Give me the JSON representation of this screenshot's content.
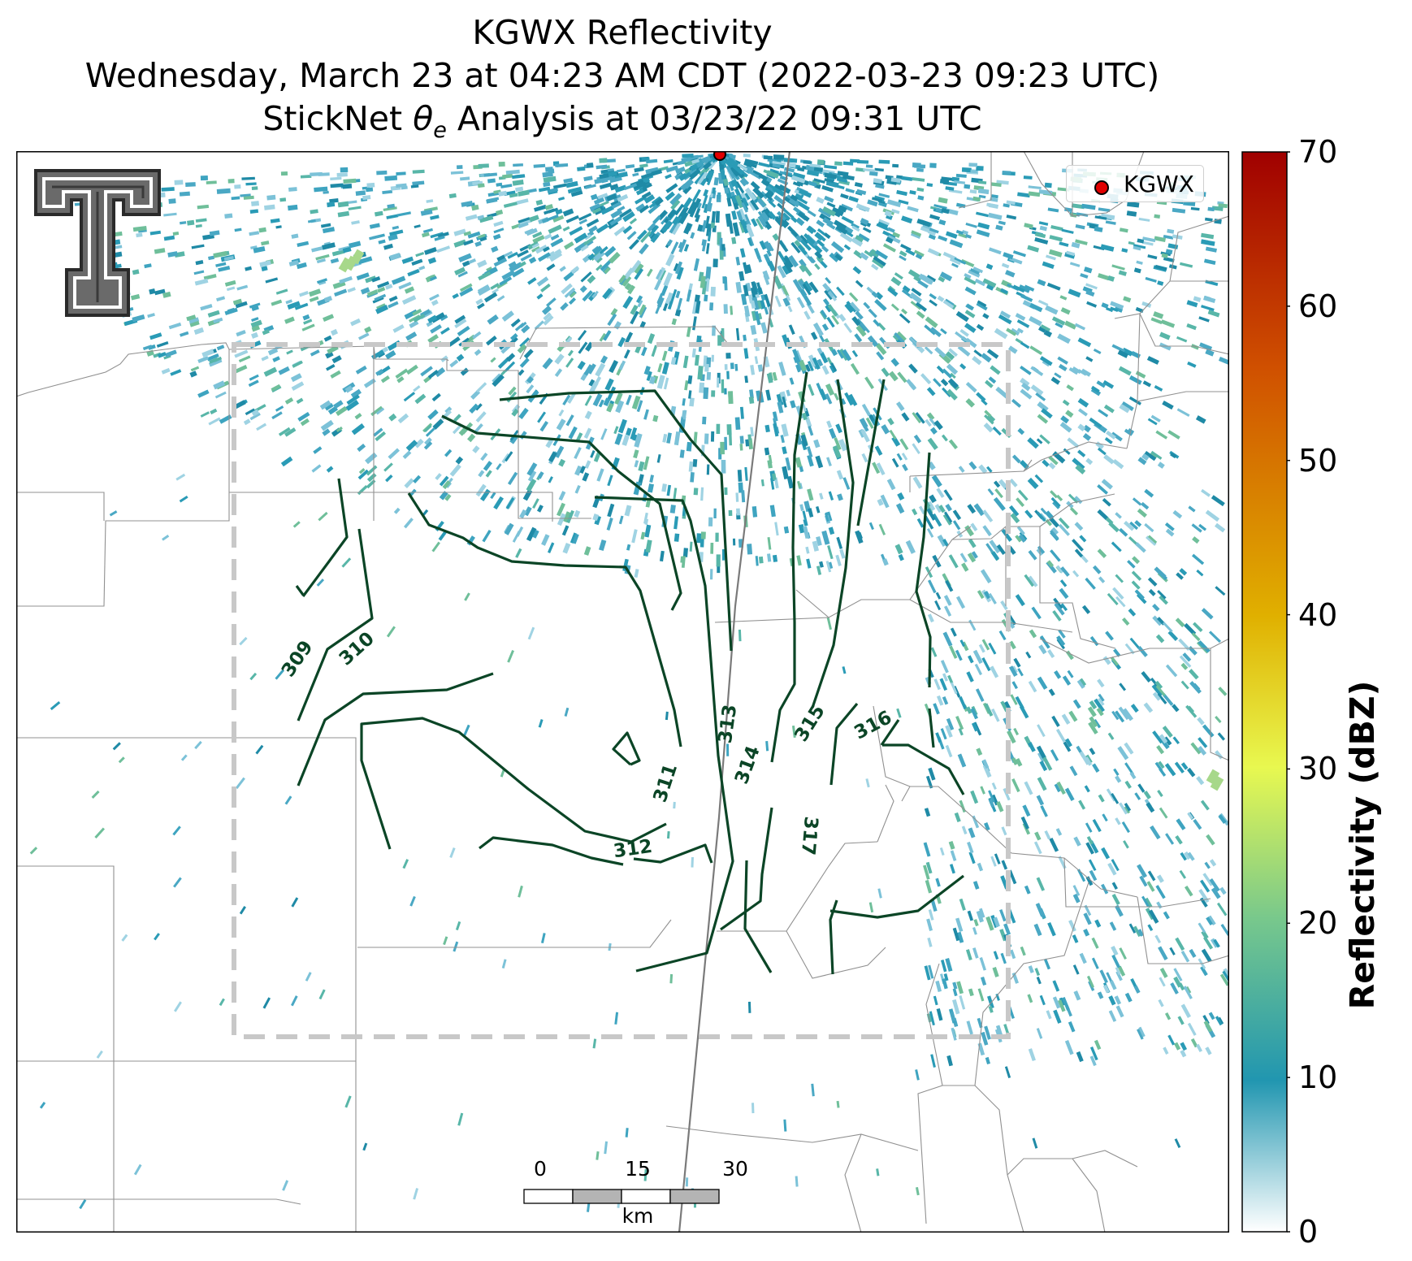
{
  "title": {
    "line1": "KGWX Reflectivity",
    "line2": "Wednesday, March 23 at 04:23 AM CDT (2022-03-23 09:23 UTC)",
    "line3_prefix": "StickNet ",
    "line3_symbol": "θ",
    "line3_subscript": "e",
    "line3_suffix": " Analysis at 03/23/22 09:31 UTC"
  },
  "legend": {
    "label": "KGWX",
    "color": "#e00000"
  },
  "colorbar": {
    "label": "Reflectivity (dBZ)",
    "ticks": [
      "0",
      "10",
      "20",
      "30",
      "40",
      "50",
      "60",
      "70"
    ],
    "min": 0,
    "max": 70,
    "colors": [
      "#ffffff",
      "#2196b0",
      "#78c88c",
      "#e8f850",
      "#e0b000",
      "#d05000",
      "#a00000"
    ]
  },
  "scale_bar": {
    "ticks": [
      "0",
      "15",
      "30"
    ],
    "unit": "km"
  },
  "radar_site": {
    "name": "KGWX",
    "color": "#e00000"
  },
  "contours": {
    "color": "#0b4526",
    "levels": [
      "309",
      "310",
      "311",
      "312",
      "313",
      "314",
      "315",
      "316",
      "317"
    ]
  },
  "colors": {
    "analysis_box": "#c8c8c8",
    "county_lines": "#909090",
    "state_line": "#7a7a7a"
  }
}
